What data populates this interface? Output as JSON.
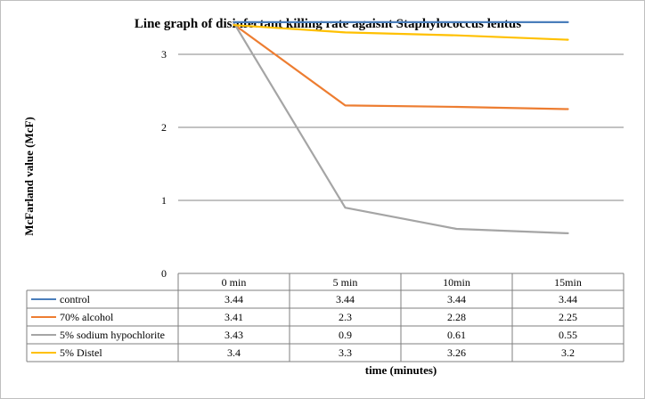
{
  "chart_data": {
    "type": "line",
    "title": "Line graph of disinfectant killing rate agaisnt Staphylococcus lentus",
    "xlabel": "time (minutes)",
    "ylabel": "McFarland value (McF)",
    "categories": [
      "0 min",
      "5 min",
      "10min",
      "15min"
    ],
    "yticks": [
      "0",
      "1",
      "2",
      "3"
    ],
    "ylim": [
      0,
      3.5
    ],
    "grid": true,
    "legend": "data-table",
    "series": [
      {
        "name": "control",
        "color": "#4a7ebb",
        "values": [
          3.44,
          3.44,
          3.44,
          3.44
        ],
        "labels": [
          "3.44",
          "3.44",
          "3.44",
          "3.44"
        ]
      },
      {
        "name": "70% alcohol",
        "color": "#ed7d31",
        "values": [
          3.41,
          2.3,
          2.28,
          2.25
        ],
        "labels": [
          "3.41",
          "2.3",
          "2.28",
          "2.25"
        ]
      },
      {
        "name": "5% sodium hypochlorite",
        "color": "#a5a5a5",
        "values": [
          3.43,
          0.9,
          0.61,
          0.55
        ],
        "labels": [
          "3.43",
          "0.9",
          "0.61",
          "0.55"
        ]
      },
      {
        "name": "5% Distel",
        "color": "#ffc000",
        "values": [
          3.4,
          3.3,
          3.26,
          3.2
        ],
        "labels": [
          "3.4",
          "3.3",
          "3.26",
          "3.2"
        ]
      }
    ]
  }
}
